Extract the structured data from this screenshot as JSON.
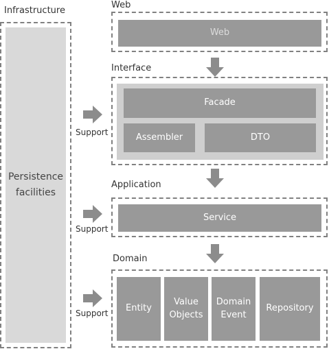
{
  "infrastructure": {
    "title": "Infrastructure",
    "persistence": "Persistence facilities"
  },
  "web": {
    "title": "Web",
    "box": "Web"
  },
  "interface": {
    "title": "Interface",
    "facade": "Facade",
    "assembler": "Assembler",
    "dto": "DTO"
  },
  "application": {
    "title": "Application",
    "service": "Service"
  },
  "domain": {
    "title": "Domain",
    "entity": "Entity",
    "value_objects": "Value Objects",
    "domain_event": "Domain Event",
    "repository": "Repository"
  },
  "support_label": "Support",
  "colors": {
    "box": "#999999",
    "arrow": "#8c8c8c",
    "dash": "#808080",
    "panel": "#cfcfcf",
    "persistence": "#d9d9d9"
  }
}
